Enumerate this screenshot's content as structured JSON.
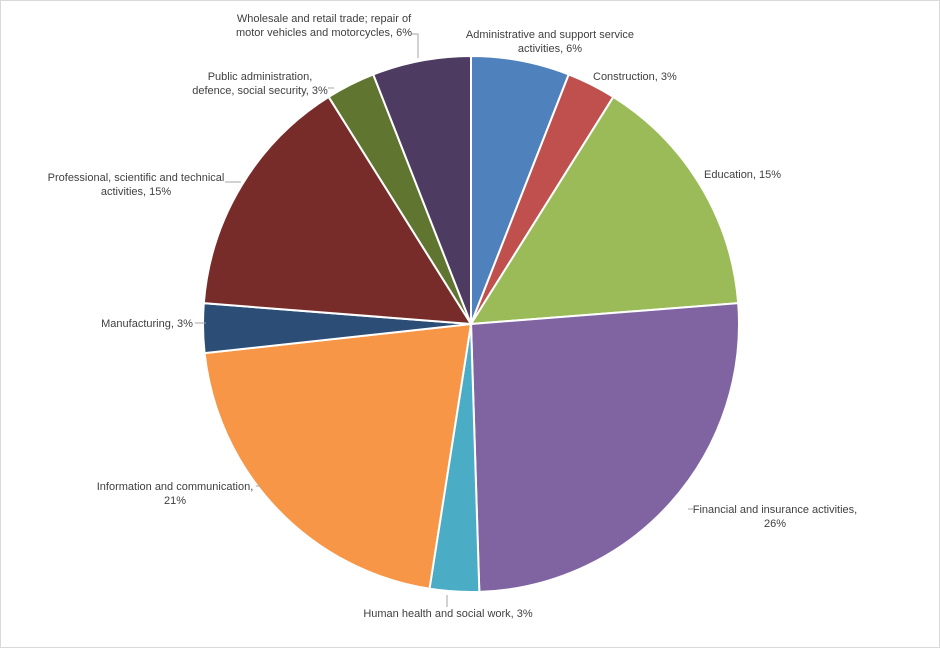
{
  "chart_data": {
    "type": "pie",
    "categories": [
      "Administrative and support service activities",
      "Construction",
      "Education",
      "Financial and insurance activities",
      "Human health and social work",
      "Information and communication",
      "Manufacturing",
      "Professional, scientific and technical activities",
      "Public administration, defence, social security",
      "Wholesale and retail trade; repair of motor vehicles and motorcycles"
    ],
    "values": [
      6,
      3,
      15,
      26,
      3,
      21,
      3,
      15,
      3,
      6
    ],
    "colors": [
      "#4F81BD",
      "#C0504D",
      "#9BBB59",
      "#8064A2",
      "#4BACC6",
      "#F79646",
      "#2C4D75",
      "#772C2A",
      "#5F7530",
      "#4D3B62"
    ],
    "data_labels": [
      [
        "Administrative and support service",
        "activities, 6%"
      ],
      [
        "Construction, 3%"
      ],
      [
        "Education, 15%"
      ],
      [
        "Financial and insurance activities,",
        "26%"
      ],
      [
        "Human health and social work, 3%"
      ],
      [
        "Information and communication,",
        "21%"
      ],
      [
        "Manufacturing, 3%"
      ],
      [
        "Professional, scientific and technical",
        "activities, 15%"
      ],
      [
        "Public administration,",
        "defence, social security, 3%"
      ],
      [
        "Wholesale and retail trade; repair of",
        "motor vehicles and motorcycles, 6%"
      ]
    ],
    "legend": "none"
  }
}
